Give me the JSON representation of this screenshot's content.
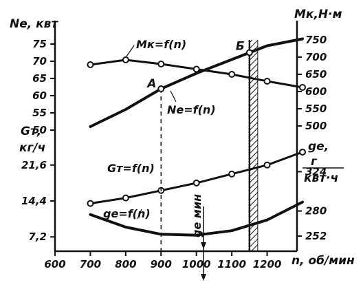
{
  "chart_data": {
    "type": "line",
    "x": {
      "label": "n, об/мин",
      "range": [
        600,
        1300
      ],
      "ticks": [
        "600",
        "700",
        "800",
        "900",
        "1000",
        "1100",
        "1200"
      ]
    },
    "axes": {
      "left_top": {
        "label": "Ne, квт",
        "ticks": [
          "75",
          "70",
          "65",
          "60",
          "55",
          "50"
        ]
      },
      "left_mid": {
        "label_line1": "Gт,",
        "label_line2": "кг/ч",
        "ticks": [
          "21,6",
          "14,4"
        ]
      },
      "left_low": {
        "ticks": [
          "7,2"
        ]
      },
      "right_top": {
        "label": "Mк,Н·м",
        "ticks": [
          "750",
          "700",
          "650",
          "600",
          "550",
          "500"
        ]
      },
      "right_low": {
        "label_line1": "ge,",
        "label_line2": "г",
        "label_line3": "квт·ч",
        "ticks": [
          "324",
          "280",
          "252"
        ]
      }
    },
    "series": [
      {
        "name": "Mк=f(n)",
        "axis": "right_top",
        "markers": true,
        "x": [
          700,
          800,
          900,
          1000,
          1100,
          1200,
          1300
        ],
        "y": [
          678,
          692,
          680,
          665,
          650,
          630,
          612
        ]
      },
      {
        "name": "Ne=f(n)",
        "axis": "left_top",
        "markers": false,
        "x": [
          700,
          800,
          900,
          1000,
          1100,
          1150,
          1200,
          1300
        ],
        "y": [
          51,
          56,
          62,
          66.5,
          70.5,
          72.5,
          74.5,
          76.5
        ]
      },
      {
        "name": "Gт=f(n)",
        "axis": "left_mid",
        "markers": true,
        "x": [
          700,
          800,
          900,
          1000,
          1100,
          1200,
          1300
        ],
        "y": [
          13.9,
          15.0,
          16.5,
          18.0,
          19.8,
          21.6,
          24.2
        ]
      },
      {
        "name": "ge=f(n)",
        "axis": "right_low",
        "markers": false,
        "x": [
          700,
          800,
          900,
          1000,
          1100,
          1200,
          1300
        ],
        "y": [
          276,
          262,
          254,
          253,
          258,
          270,
          290
        ]
      }
    ],
    "annotations": {
      "point_a": "А",
      "point_b": "Б",
      "ge_min": "ge мин",
      "point_a_x": 900,
      "point_b_x": 1150,
      "ge_min_x": 1020
    }
  }
}
